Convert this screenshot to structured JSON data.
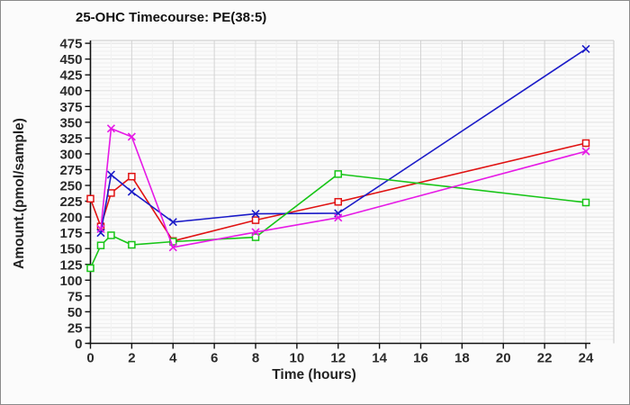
{
  "title": "25-OHC Timecourse: PE(38:5)",
  "chart_data": {
    "type": "line",
    "title": "25-OHC Timecourse: PE(38:5)",
    "xlabel": "Time (hours)",
    "ylabel": "Amount.(pmol/sample)",
    "x": [
      0,
      0.5,
      1,
      2,
      4,
      8,
      12,
      24
    ],
    "series": [
      {
        "name": "red-series",
        "color": "#e01212",
        "marker": "square",
        "values": [
          229,
          185,
          238,
          264,
          162,
          195,
          224,
          317
        ]
      },
      {
        "name": "blue-series",
        "color": "#1b1bc8",
        "marker": "x",
        "values": [
          null,
          175,
          267,
          240,
          192,
          205,
          206,
          466
        ]
      },
      {
        "name": "green-series",
        "color": "#17c517",
        "marker": "square",
        "values": [
          119,
          155,
          171,
          156,
          161,
          168,
          268,
          223
        ]
      },
      {
        "name": "magenta-series",
        "color": "#e619e6",
        "marker": "x",
        "values": [
          null,
          181,
          340,
          327,
          152,
          176,
          199,
          304
        ]
      }
    ],
    "xlim": [
      0,
      24
    ],
    "ylim": [
      0,
      475
    ],
    "x_ticks": [
      0,
      2,
      4,
      6,
      8,
      10,
      12,
      14,
      16,
      18,
      20,
      22,
      24
    ],
    "y_tick_step": 25,
    "y_minor_step": 6.25,
    "x_minor_step": 1,
    "grid": true,
    "legend": "none",
    "style": {
      "axis_color": "#111111",
      "tick_label_color": "#2b2b2b",
      "grid_major_h": "#e1e1e1",
      "grid_minor_h": "#efefef",
      "grid_major_v": "#d4d4d4",
      "grid_minor_v": "#f2f2f2",
      "frame_color": "#c9c9c9",
      "background": "#fbfbfb"
    }
  }
}
